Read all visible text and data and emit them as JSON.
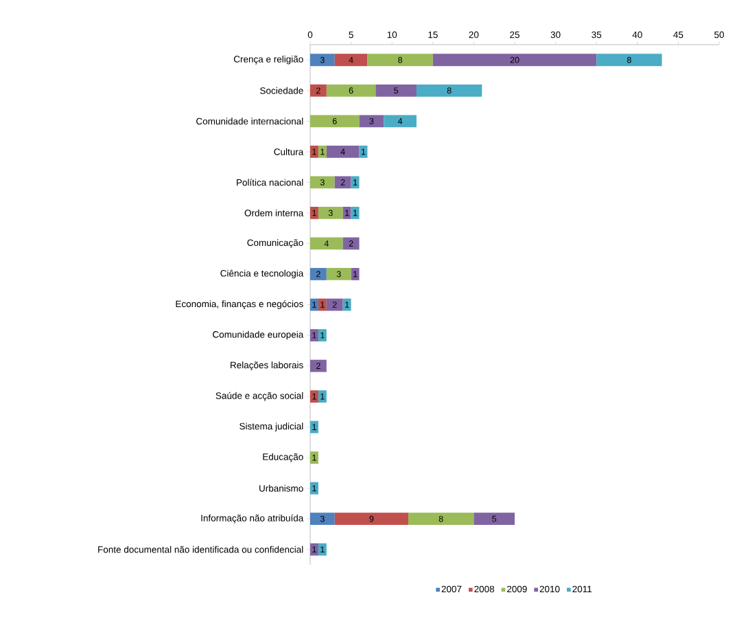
{
  "chart_data": {
    "type": "bar",
    "orientation": "horizontal",
    "stacked": true,
    "data_labels": true,
    "legend": "bottom",
    "grid": false,
    "categories": [
      "Crença e religião",
      "Sociedade",
      "Comunidade internacional",
      "Cultura",
      "Política nacional",
      "Ordem interna",
      "Comunicação",
      "Ciência e tecnologia",
      "Economia, finanças e negócios",
      "Comunidade europeia",
      "Relações laborais",
      "Saúde e acção social",
      "Sistema judicial",
      "Educação",
      "Urbanismo",
      "Informação não atribuída",
      "Fonte documental não identificada ou confidencial"
    ],
    "xlim": [
      0,
      50
    ],
    "xticks": [
      0,
      5,
      10,
      15,
      20,
      25,
      30,
      35,
      40,
      45,
      50
    ],
    "series": [
      {
        "name": "2007",
        "color": "#4f81bd",
        "values": [
          3,
          null,
          null,
          null,
          null,
          null,
          null,
          2,
          1,
          null,
          null,
          null,
          null,
          null,
          null,
          3,
          null
        ]
      },
      {
        "name": "2008",
        "color": "#c0504d",
        "values": [
          4,
          2,
          null,
          1,
          null,
          1,
          null,
          null,
          1,
          null,
          null,
          1,
          null,
          null,
          null,
          9,
          null
        ]
      },
      {
        "name": "2009",
        "color": "#9bbb59",
        "values": [
          8,
          6,
          6,
          1,
          3,
          3,
          4,
          3,
          null,
          null,
          null,
          null,
          null,
          1,
          null,
          8,
          null
        ]
      },
      {
        "name": "2010",
        "color": "#8064a2",
        "values": [
          20,
          5,
          3,
          4,
          2,
          1,
          2,
          1,
          2,
          1,
          2,
          null,
          null,
          null,
          null,
          5,
          1
        ]
      },
      {
        "name": "2011",
        "color": "#4bacc6",
        "values": [
          8,
          8,
          4,
          1,
          1,
          1,
          null,
          null,
          1,
          1,
          null,
          1,
          1,
          null,
          1,
          null,
          1
        ]
      }
    ]
  }
}
